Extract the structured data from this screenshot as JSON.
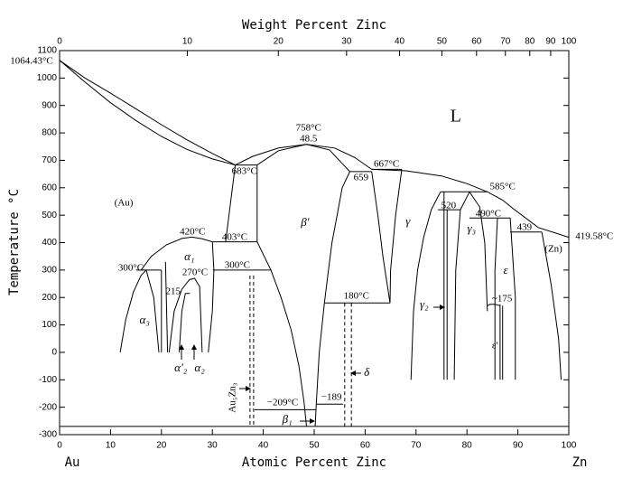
{
  "chart_data": {
    "type": "line",
    "xlabel": "Atomic Percent Zinc",
    "x2label": "Weight Percent Zinc",
    "ylabel": "Temperature °C",
    "x_end_labels": [
      "Au",
      "Zn"
    ],
    "xlim": [
      0,
      100
    ],
    "ylim": [
      -300,
      1100
    ],
    "xticks": [
      0,
      10,
      20,
      30,
      40,
      50,
      60,
      70,
      80,
      90,
      100
    ],
    "x2ticks": [
      0,
      10,
      20,
      30,
      40,
      50,
      60,
      70,
      80,
      90,
      100
    ],
    "yticks": [
      -300,
      -200,
      -100,
      0,
      100,
      200,
      300,
      400,
      500,
      600,
      700,
      800,
      900,
      1000,
      1100
    ],
    "grid": false,
    "color": "#000000",
    "series": [
      {
        "x": [
          0,
          5,
          10,
          15,
          20,
          25,
          30,
          34.5
        ],
        "values": [
          1064.43,
          1000,
          945,
          888,
          830,
          775,
          725,
          683
        ]
      },
      {
        "x": [
          0,
          5,
          10,
          15,
          20,
          25,
          30,
          34.5
        ],
        "values": [
          1064.43,
          985,
          910,
          845,
          787,
          740,
          705,
          683
        ]
      },
      {
        "x": [
          34.5,
          38.8
        ],
        "values": [
          683,
          683
        ]
      },
      {
        "x": [
          34.5,
          38,
          43,
          48.5,
          54,
          58,
          61.3
        ],
        "values": [
          683,
          715,
          745,
          758,
          745,
          710,
          667
        ]
      },
      {
        "x": [
          38.8,
          43,
          48.5,
          53,
          57
        ],
        "values": [
          683,
          735,
          758,
          738,
          659
        ]
      },
      {
        "x": [
          57,
          61.3
        ],
        "values": [
          659,
          659
        ]
      },
      {
        "x": [
          61.3,
          67.2
        ],
        "values": [
          667,
          667
        ]
      },
      {
        "x": [
          61.3,
          68,
          75,
          80,
          84,
          87,
          89,
          91.5,
          94,
          100
        ],
        "values": [
          667,
          662,
          643,
          615,
          585,
          555,
          525,
          490,
          455,
          419.58
        ]
      },
      {
        "x": [
          34.5,
          32.6
        ],
        "values": [
          683,
          403
        ]
      },
      {
        "x": [
          30,
          38.8
        ],
        "values": [
          403,
          403
        ]
      },
      {
        "x": [
          38.8,
          38.8
        ],
        "values": [
          683,
          403
        ]
      },
      {
        "x": [
          16,
          18,
          21,
          24,
          26,
          28,
          30
        ],
        "values": [
          300,
          350,
          392,
          415,
          420,
          414,
          403
        ]
      },
      {
        "x": [
          15,
          20
        ],
        "values": [
          300,
          300
        ]
      },
      {
        "x": [
          30.1,
          41.5
        ],
        "values": [
          300,
          300
        ]
      },
      {
        "x": [
          11.9,
          13,
          14.5,
          16,
          17,
          18.5,
          19.5
        ],
        "values": [
          0,
          120,
          220,
          280,
          300,
          200,
          0
        ]
      },
      {
        "x": [
          20,
          20
        ],
        "values": [
          300,
          0
        ]
      },
      {
        "x": [
          21.5,
          22.5,
          24,
          25.5,
          26.5,
          27.5,
          28
        ],
        "values": [
          0,
          150,
          230,
          265,
          270,
          240,
          0
        ]
      },
      {
        "x": [
          23.5,
          24,
          24.7
        ],
        "values": [
          0,
          150,
          215
        ]
      },
      {
        "x": [
          24.7,
          25.6
        ],
        "values": [
          215,
          215
        ]
      },
      {
        "x": [
          30,
          30.3,
          30,
          29.2
        ],
        "values": [
          403,
          300,
          150,
          0
        ]
      },
      {
        "x": [
          20.8,
          21.2
        ],
        "values": [
          330,
          0
        ]
      },
      {
        "x": [
          38.8,
          41.5,
          43.5,
          45.5,
          47,
          48,
          48.5
        ],
        "values": [
          403,
          300,
          200,
          80,
          -50,
          -180,
          -270
        ]
      },
      {
        "x": [
          57,
          55.5,
          54.5,
          53.5,
          52.8,
          52,
          51,
          50.4,
          50.2
        ],
        "values": [
          659,
          600,
          500,
          400,
          300,
          180,
          0,
          -189,
          -270
        ]
      },
      {
        "x": [
          38.3,
          50.4
        ],
        "values": [
          -209,
          -209
        ]
      },
      {
        "x": [
          50.4,
          55.7
        ],
        "values": [
          -189,
          -189
        ]
      },
      {
        "x": [
          37.4,
          37.4
        ],
        "values": [
          280,
          -270
        ],
        "dashed": true
      },
      {
        "x": [
          38.1,
          38.1
        ],
        "values": [
          280,
          -270
        ],
        "dashed": true
      },
      {
        "x": [
          56,
          56
        ],
        "values": [
          180,
          -270
        ],
        "dashed": true
      },
      {
        "x": [
          57.3,
          57.3
        ],
        "values": [
          180,
          -270
        ],
        "dashed": true
      },
      {
        "x": [
          52.1,
          64.9
        ],
        "values": [
          180,
          180
        ]
      },
      {
        "x": [
          61.3,
          62.5,
          63.5,
          64.9
        ],
        "values": [
          659,
          500,
          350,
          180
        ]
      },
      {
        "x": [
          67.2,
          66,
          65,
          64.9
        ],
        "values": [
          667,
          500,
          300,
          180
        ]
      },
      {
        "x": [
          74.8,
          73,
          71.5,
          70.3,
          69.5,
          69
        ],
        "values": [
          585,
          520,
          420,
          300,
          150,
          -100
        ]
      },
      {
        "x": [
          74.8,
          84
        ],
        "values": [
          585,
          585
        ]
      },
      {
        "x": [
          74.3,
          78.7
        ],
        "values": [
          520,
          520
        ]
      },
      {
        "x": [
          75.5,
          75.5
        ],
        "values": [
          585,
          -100
        ]
      },
      {
        "x": [
          76.1,
          76.1
        ],
        "values": [
          520,
          -100
        ]
      },
      {
        "x": [
          77.5,
          77.8,
          78.7,
          80.5,
          82.5,
          83.5,
          84
        ],
        "values": [
          -100,
          300,
          520,
          585,
          530,
          400,
          150
        ]
      },
      {
        "x": [
          80.5,
          88.5
        ],
        "values": [
          490,
          490
        ]
      },
      {
        "x": [
          88.5,
          94.7
        ],
        "values": [
          439,
          439
        ]
      },
      {
        "x": [
          86,
          85.5,
          85.5
        ],
        "values": [
          490,
          300,
          -100
        ]
      },
      {
        "x": [
          88.5,
          89.5,
          89.5
        ],
        "values": [
          490,
          200,
          -100
        ]
      },
      {
        "x": [
          84,
          84.5,
          85.5,
          86.5
        ],
        "values": [
          170,
          175,
          175,
          170
        ]
      },
      {
        "x": [
          86.5,
          86.5
        ],
        "values": [
          175,
          -100
        ]
      },
      {
        "x": [
          87,
          87
        ],
        "values": [
          170,
          -100
        ]
      },
      {
        "x": [
          94.7,
          96.5,
          98,
          98.5
        ],
        "values": [
          439,
          250,
          50,
          -100
        ]
      },
      {
        "x": [
          0,
          100
        ],
        "values": [
          -270,
          -270
        ]
      }
    ],
    "annotations": [
      {
        "text": "1064.43°C",
        "x": -5.5,
        "y": 1060
      },
      {
        "text": "(Au)",
        "x": 12.6,
        "y": 543
      },
      {
        "text": "L",
        "x": 77.8,
        "y": 856
      },
      {
        "text": "758°C",
        "x": 48.9,
        "y": 817
      },
      {
        "text": "48.5",
        "x": 48.9,
        "y": 777
      },
      {
        "text": "683°C",
        "x": 36.3,
        "y": 659
      },
      {
        "text": "667°C",
        "x": 64.2,
        "y": 685
      },
      {
        "text": "659",
        "x": 59.2,
        "y": 636
      },
      {
        "text": "585°C",
        "x": 87,
        "y": 603
      },
      {
        "text": "520",
        "x": 76.4,
        "y": 533
      },
      {
        "text": "490°C",
        "x": 84.2,
        "y": 504
      },
      {
        "text": "439",
        "x": 91.3,
        "y": 454
      },
      {
        "text": "419.58°C",
        "x": 105,
        "y": 421
      },
      {
        "text": "(Zn)",
        "x": 97,
        "y": 375
      },
      {
        "text": "420°C",
        "x": 26.1,
        "y": 438
      },
      {
        "text": "403°C",
        "x": 34.4,
        "y": 418
      },
      {
        "text": "300°C",
        "x": 14,
        "y": 306
      },
      {
        "text": "270°C",
        "x": 26.6,
        "y": 290
      },
      {
        "text": "300°C",
        "x": 34.9,
        "y": 316
      },
      {
        "text": "215",
        "x": 22.3,
        "y": 221
      },
      {
        "text": "β'",
        "x": 48.2,
        "y": 471
      },
      {
        "text": "γ",
        "x": 68.4,
        "y": 474
      },
      {
        "text": "γ₃",
        "x": 80.9,
        "y": 448
      },
      {
        "text": "ε",
        "x": 87.6,
        "y": 296
      },
      {
        "text": "γ₂",
        "x": 71.6,
        "y": 171
      },
      {
        "text": "180°C",
        "x": 58.3,
        "y": 204
      },
      {
        "text": "~175",
        "x": 86.9,
        "y": 194
      },
      {
        "text": "ε'",
        "x": 85.5,
        "y": 23
      },
      {
        "text": "α₃",
        "x": 16.7,
        "y": 115
      },
      {
        "text": "α₁",
        "x": 25.5,
        "y": 346
      },
      {
        "text": "α'₂",
        "x": 23.8,
        "y": -59
      },
      {
        "text": "α₂",
        "x": 27.5,
        "y": -59
      },
      {
        "text": "Au₅Zn₃",
        "x": 34,
        "y": -165,
        "vertical": true
      },
      {
        "text": "δ",
        "x": 60.3,
        "y": -76
      },
      {
        "text": "−209°C",
        "x": 43.8,
        "y": -185
      },
      {
        "text": "−189",
        "x": 53.4,
        "y": -165
      },
      {
        "text": "β₁",
        "x": 44.7,
        "y": -247
      }
    ]
  }
}
